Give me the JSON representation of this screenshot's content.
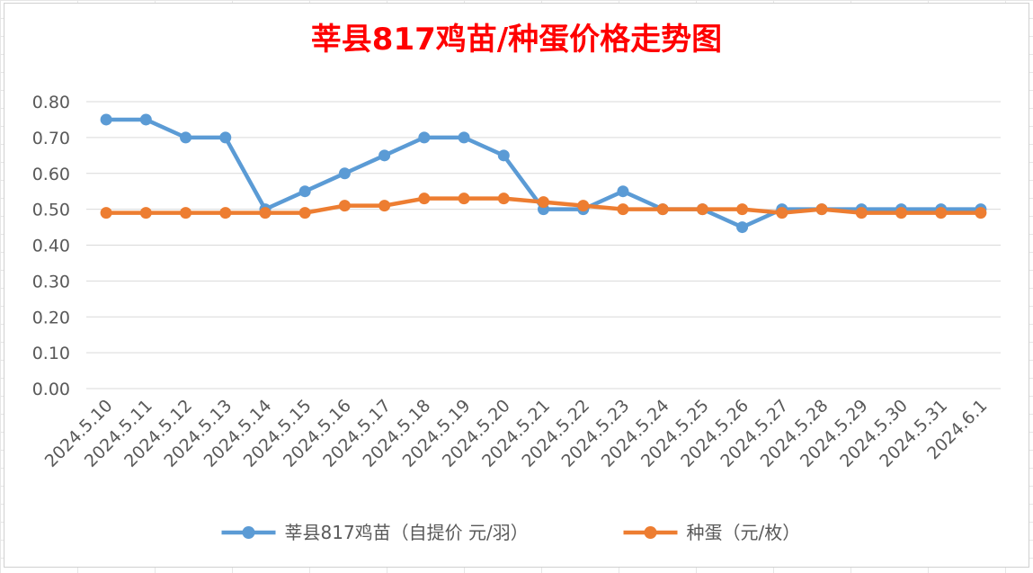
{
  "chart_data": {
    "type": "line",
    "title": "莘县817鸡苗/种蛋价格走势图",
    "xlabel": "",
    "ylabel": "",
    "categories": [
      "2024.5.10",
      "2024.5.11",
      "2024.5.12",
      "2024.5.13",
      "2024.5.14",
      "2024.5.15",
      "2024.5.16",
      "2024.5.17",
      "2024.5.18",
      "2024.5.19",
      "2024.5.20",
      "2024.5.21",
      "2024.5.22",
      "2024.5.23",
      "2024.5.24",
      "2024.5.25",
      "2024.5.26",
      "2024.5.27",
      "2024.5.28",
      "2024.5.29",
      "2024.5.30",
      "2024.5.31",
      "2024.6.1"
    ],
    "yticks": [
      "0.00",
      "0.10",
      "0.20",
      "0.30",
      "0.40",
      "0.50",
      "0.60",
      "0.70",
      "0.80"
    ],
    "ylim": [
      0,
      0.8
    ],
    "grid": true,
    "legend_position": "bottom",
    "series": [
      {
        "name": "莘县817鸡苗（自提价 元/羽）",
        "color": "#5b9bd5",
        "values": [
          0.75,
          0.75,
          0.7,
          0.7,
          0.5,
          0.55,
          0.6,
          0.65,
          0.7,
          0.7,
          0.65,
          0.5,
          0.5,
          0.55,
          0.5,
          0.5,
          0.45,
          0.5,
          0.5,
          0.5,
          0.5,
          0.5,
          0.5
        ]
      },
      {
        "name": "种蛋（元/枚）",
        "color": "#ed7d31",
        "values": [
          0.49,
          0.49,
          0.49,
          0.49,
          0.49,
          0.49,
          0.51,
          0.51,
          0.53,
          0.53,
          0.53,
          0.52,
          0.51,
          0.5,
          0.5,
          0.5,
          0.5,
          0.49,
          0.5,
          0.49,
          0.49,
          0.49,
          0.49
        ]
      }
    ]
  },
  "colors": {
    "title": "#ff0000",
    "gridline": "#d9d9d9",
    "axis_text": "#595959"
  }
}
